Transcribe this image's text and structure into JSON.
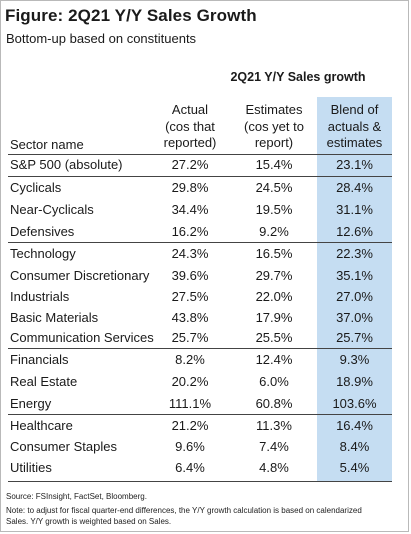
{
  "header": {
    "title": "Figure: 2Q21 Y/Y Sales Growth",
    "subtitle": "Bottom-up based on constituents"
  },
  "table": {
    "group_header": "2Q21 Y/Y Sales growth",
    "col_sector": "Sector name",
    "col_actual": "Actual\n(cos that\nreported)",
    "col_estimates": "Estimates\n(cos yet to\nreport)",
    "col_blend": "Blend of\nactuals &\nestimates",
    "rows": [
      {
        "name": "S&P 500 (absolute)",
        "actual": "27.2%",
        "est": "15.4%",
        "blend": "23.1%"
      },
      {
        "name": "Cyclicals",
        "actual": "29.8%",
        "est": "24.5%",
        "blend": "28.4%"
      },
      {
        "name": "Near-Cyclicals",
        "actual": "34.4%",
        "est": "19.5%",
        "blend": "31.1%"
      },
      {
        "name": "Defensives",
        "actual": "16.2%",
        "est": "9.2%",
        "blend": "12.6%"
      },
      {
        "name": "Technology",
        "actual": "24.3%",
        "est": "16.5%",
        "blend": "22.3%"
      },
      {
        "name": "Consumer Discretionary",
        "actual": "39.6%",
        "est": "29.7%",
        "blend": "35.1%"
      },
      {
        "name": "Industrials",
        "actual": "27.5%",
        "est": "22.0%",
        "blend": "27.0%"
      },
      {
        "name": "Basic Materials",
        "actual": "43.8%",
        "est": "17.9%",
        "blend": "37.0%"
      },
      {
        "name": "Communication Services",
        "actual": "25.7%",
        "est": "25.5%",
        "blend": "25.7%"
      },
      {
        "name": "Financials",
        "actual": "8.2%",
        "est": "12.4%",
        "blend": "9.3%"
      },
      {
        "name": "Real Estate",
        "actual": "20.2%",
        "est": "6.0%",
        "blend": "18.9%"
      },
      {
        "name": "Energy",
        "actual": "111.1%",
        "est": "60.8%",
        "blend": "103.6%"
      },
      {
        "name": "Healthcare",
        "actual": "21.2%",
        "est": "11.3%",
        "blend": "16.4%"
      },
      {
        "name": "Consumer Staples",
        "actual": "9.6%",
        "est": "7.4%",
        "blend": "8.4%"
      },
      {
        "name": "Utilities",
        "actual": "6.4%",
        "est": "4.8%",
        "blend": "5.4%"
      }
    ]
  },
  "footer": {
    "source": "Source: FSInsight, FactSet, Bloomberg.",
    "note_line1": "Note: to adjust for fiscal quarter-end differences, the Y/Y growth calculation is based on calendarized",
    "note_line2": "Sales. Y/Y growth is weighted based on Sales."
  }
}
